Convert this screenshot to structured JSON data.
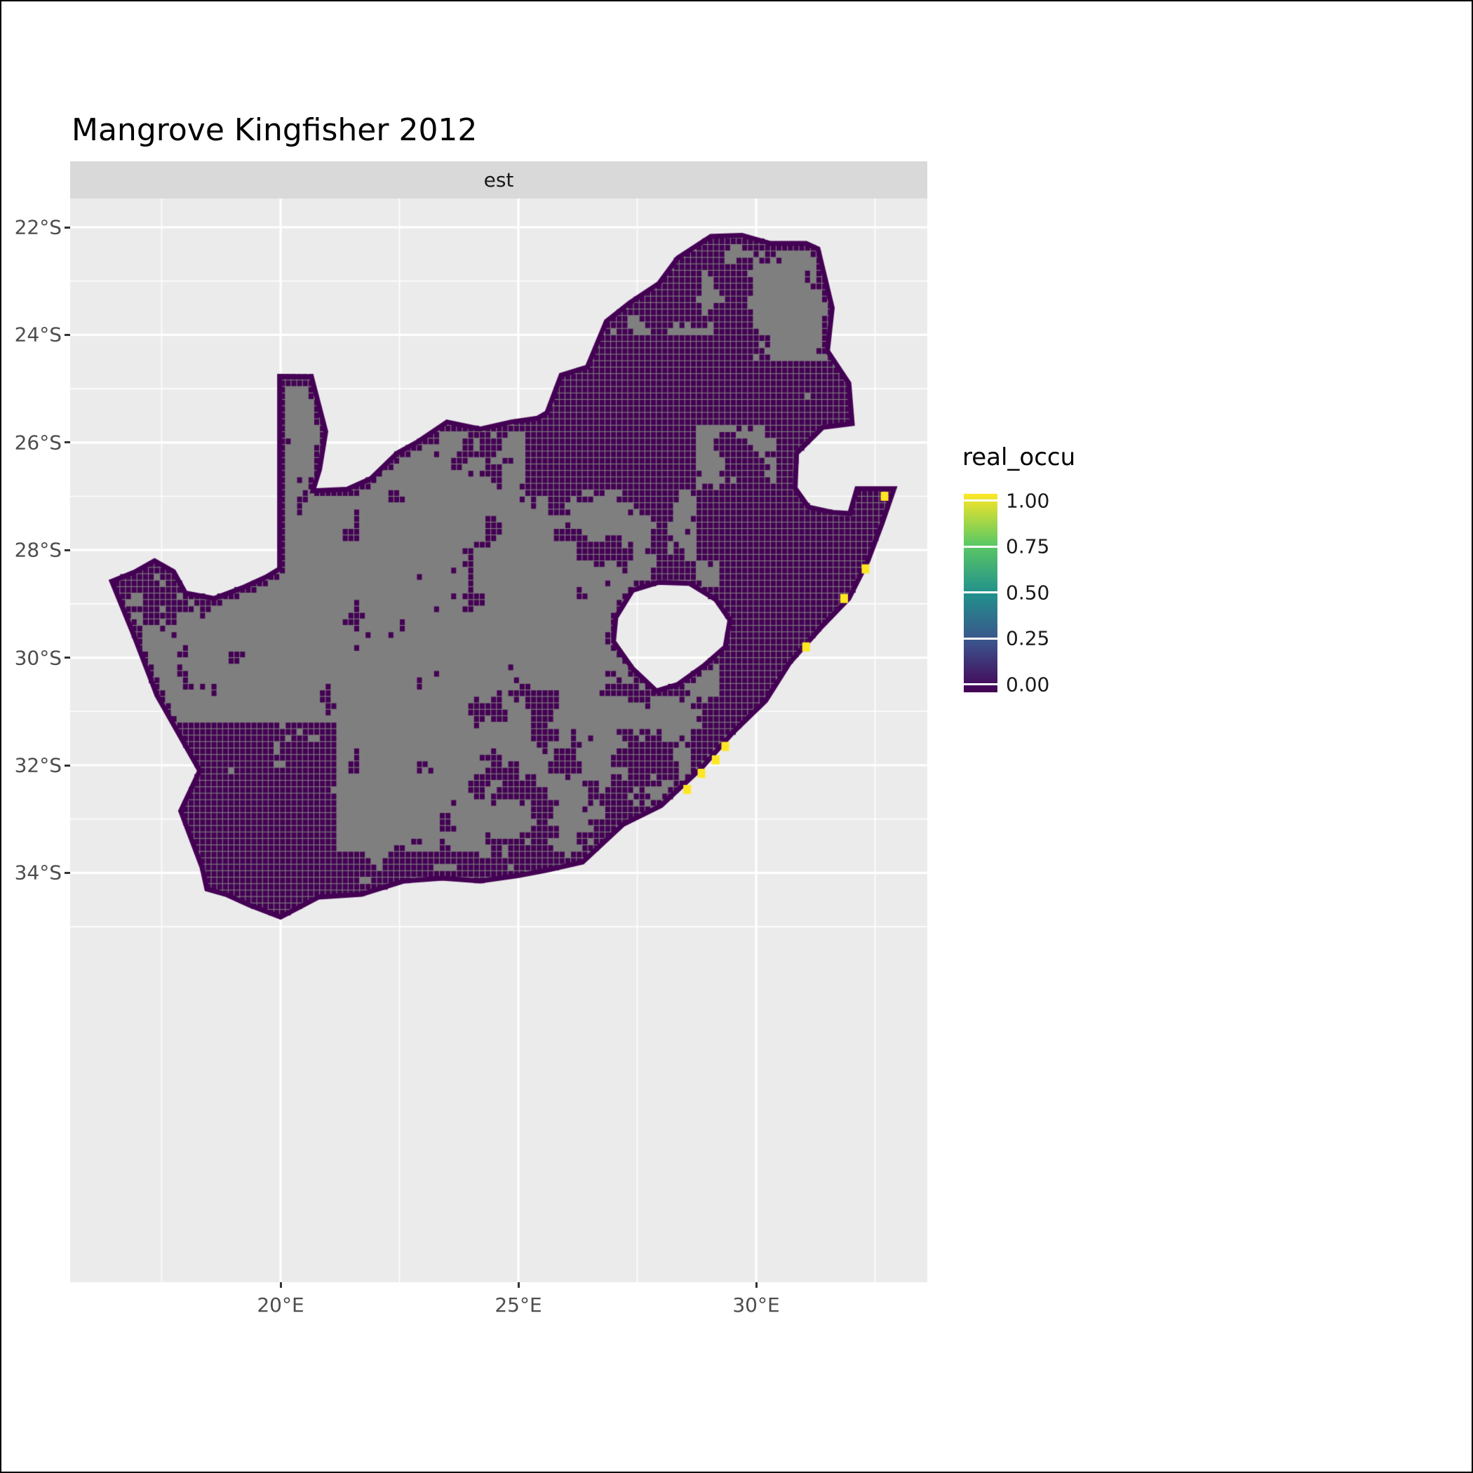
{
  "title": "Mangrove Kingfisher 2012",
  "facet": {
    "label": "est"
  },
  "axes": {
    "x": {
      "tick_labels": [
        "20°E",
        "25°E",
        "30°E"
      ],
      "tick_lons": [
        20,
        25,
        30
      ],
      "minor_lons": [
        17.5,
        22.5,
        27.5,
        32.5
      ]
    },
    "y": {
      "tick_labels": [
        "22°S",
        "24°S",
        "26°S",
        "28°S",
        "30°S",
        "32°S",
        "34°S"
      ],
      "tick_lats": [
        22,
        24,
        26,
        28,
        30,
        32,
        34
      ],
      "minor_lats": [
        23,
        25,
        27,
        29,
        31,
        33,
        35
      ]
    }
  },
  "legend": {
    "title": "real_occu",
    "tick_labels": [
      "1.00",
      "0.75",
      "0.50",
      "0.25",
      "0.00"
    ],
    "tick_values": [
      1,
      0.75,
      0.5,
      0.25,
      0
    ],
    "gradient_stops": [
      {
        "value": 0,
        "color": "#440154"
      },
      {
        "value": 0.25,
        "color": "#3B528B"
      },
      {
        "value": 0.5,
        "color": "#21918C"
      },
      {
        "value": 0.75,
        "color": "#5EC962"
      },
      {
        "value": 1,
        "color": "#FDE725"
      }
    ]
  },
  "colors": {
    "panel_bg": "#EBEBEB",
    "strip_bg": "#D9D9D9",
    "grid": "#FFFFFF",
    "na_cell": "#7F7F7F",
    "zero_cell": "#440154",
    "one_cell": "#FDE725",
    "axis_text": "#4D4D4D",
    "tick_mark": "#333333"
  },
  "chart_data": {
    "type": "heatmap",
    "title": "Mangrove Kingfisher 2012",
    "facet": "est",
    "variable": "real_occu",
    "value_range": [
      0,
      1
    ],
    "legend_breaks": [
      0,
      0.25,
      0.5,
      0.75,
      1
    ],
    "x_tick_lons": [
      20,
      25,
      30
    ],
    "y_tick_lats_south": [
      22,
      24,
      26,
      28,
      30,
      32,
      34
    ],
    "description": "Raster map of South Africa showing estimated occupancy (real_occu) of the Mangrove Kingfisher in 2012. Cells are either 0 (dark purple, viridis low), NA (gray), or 1 (yellow) at a handful of cells along the east and south coast.",
    "cell_size_deg": 0.12,
    "sa_outline": [
      [
        16.45,
        28.58
      ],
      [
        16.95,
        28.4
      ],
      [
        17.35,
        28.2
      ],
      [
        17.75,
        28.4
      ],
      [
        18.0,
        28.8
      ],
      [
        18.6,
        28.9
      ],
      [
        19.2,
        28.7
      ],
      [
        19.7,
        28.5
      ],
      [
        19.98,
        28.35
      ],
      [
        19.98,
        24.77
      ],
      [
        20.65,
        24.78
      ],
      [
        20.95,
        25.8
      ],
      [
        20.82,
        26.5
      ],
      [
        20.68,
        26.9
      ],
      [
        21.4,
        26.87
      ],
      [
        21.9,
        26.67
      ],
      [
        22.45,
        26.2
      ],
      [
        22.9,
        25.98
      ],
      [
        23.5,
        25.62
      ],
      [
        24.2,
        25.75
      ],
      [
        24.85,
        25.62
      ],
      [
        25.4,
        25.55
      ],
      [
        25.6,
        25.45
      ],
      [
        25.9,
        24.75
      ],
      [
        26.45,
        24.6
      ],
      [
        26.85,
        23.75
      ],
      [
        27.35,
        23.4
      ],
      [
        27.95,
        23.05
      ],
      [
        28.35,
        22.57
      ],
      [
        29.05,
        22.17
      ],
      [
        29.7,
        22.15
      ],
      [
        30.3,
        22.3
      ],
      [
        31.05,
        22.3
      ],
      [
        31.3,
        22.4
      ],
      [
        31.6,
        23.5
      ],
      [
        31.5,
        24.3
      ],
      [
        31.95,
        24.9
      ],
      [
        32.02,
        25.65
      ],
      [
        31.4,
        25.72
      ],
      [
        30.85,
        26.2
      ],
      [
        30.82,
        26.85
      ],
      [
        31.1,
        27.2
      ],
      [
        31.6,
        27.3
      ],
      [
        31.97,
        27.32
      ],
      [
        32.12,
        26.86
      ],
      [
        32.45,
        26.86
      ],
      [
        32.9,
        26.86
      ],
      [
        32.65,
        27.5
      ],
      [
        32.35,
        28.2
      ],
      [
        31.95,
        28.9
      ],
      [
        31.35,
        29.45
      ],
      [
        30.7,
        30.1
      ],
      [
        30.2,
        30.8
      ],
      [
        29.5,
        31.4
      ],
      [
        28.85,
        32.05
      ],
      [
        28.0,
        32.75
      ],
      [
        27.2,
        33.1
      ],
      [
        26.35,
        33.8
      ],
      [
        25.6,
        33.95
      ],
      [
        25.0,
        34.05
      ],
      [
        24.2,
        34.15
      ],
      [
        23.4,
        34.1
      ],
      [
        22.6,
        34.15
      ],
      [
        21.7,
        34.4
      ],
      [
        20.8,
        34.45
      ],
      [
        20.0,
        34.82
      ],
      [
        19.35,
        34.6
      ],
      [
        18.85,
        34.4
      ],
      [
        18.45,
        34.3
      ],
      [
        18.35,
        33.9
      ],
      [
        17.9,
        32.85
      ],
      [
        18.3,
        32.1
      ],
      [
        17.4,
        30.7
      ],
      [
        16.9,
        29.55
      ]
    ],
    "lesotho_hole": [
      [
        27.05,
        29.25
      ],
      [
        27.4,
        28.75
      ],
      [
        27.95,
        28.6
      ],
      [
        28.6,
        28.62
      ],
      [
        29.15,
        28.92
      ],
      [
        29.45,
        29.3
      ],
      [
        29.35,
        29.8
      ],
      [
        28.9,
        30.15
      ],
      [
        28.35,
        30.5
      ],
      [
        27.9,
        30.62
      ],
      [
        27.4,
        30.2
      ],
      [
        27.0,
        29.7
      ]
    ],
    "occupied_cells_lonlat": [
      [
        32.7,
        27.0
      ],
      [
        32.3,
        28.35
      ],
      [
        31.85,
        28.9
      ],
      [
        31.05,
        29.8
      ],
      [
        29.35,
        31.65
      ],
      [
        29.15,
        31.9
      ],
      [
        28.85,
        32.15
      ],
      [
        28.55,
        32.45
      ]
    ]
  }
}
